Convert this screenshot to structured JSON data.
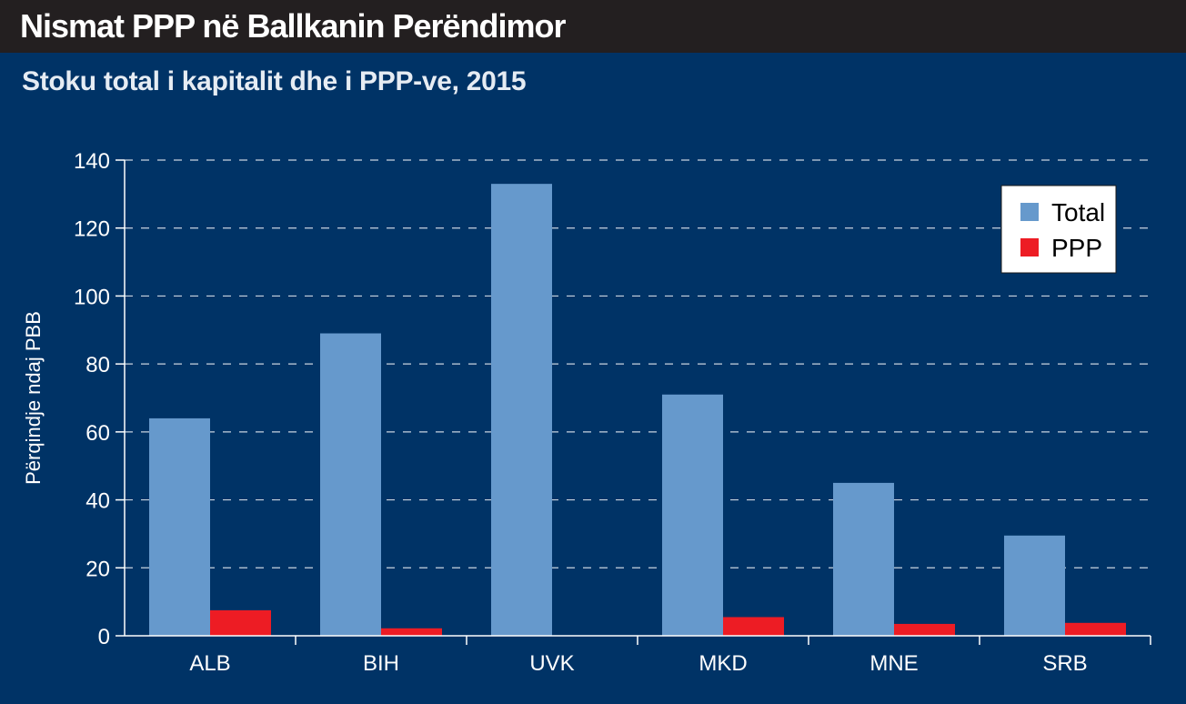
{
  "header": {
    "title": "Nismat PPP në Ballkanin Perëndimor",
    "subtitle": "Stoku total i kapitalit dhe i PPP-ve, 2015"
  },
  "colors": {
    "background": "#003366",
    "header_bar": "#231f20",
    "total": "#6699cc",
    "ppp": "#ed1c24"
  },
  "chart_data": {
    "type": "bar",
    "title": "Stoku total i kapitalit dhe i PPP-ve, 2015",
    "ylabel": "Përqindje ndaj PBB",
    "xlabel": "",
    "categories": [
      "ALB",
      "BIH",
      "UVK",
      "MKD",
      "MNE",
      "SRB"
    ],
    "series": [
      {
        "name": "Total",
        "values": [
          64,
          89,
          133,
          71,
          45,
          29.5
        ]
      },
      {
        "name": "PPP",
        "values": [
          7.5,
          2.2,
          0,
          5.5,
          3.5,
          3.8
        ]
      }
    ],
    "ylim": [
      0,
      140
    ],
    "yticks": [
      0,
      20,
      40,
      60,
      80,
      100,
      120,
      140
    ],
    "grid": true,
    "legend": "top-right"
  }
}
